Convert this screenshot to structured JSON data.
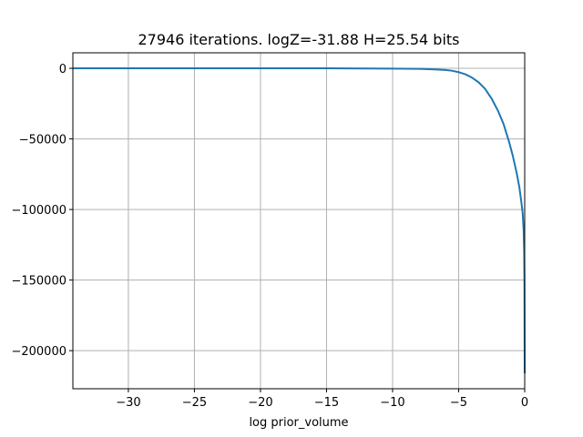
{
  "chart_data": {
    "type": "line",
    "title": "27946 iterations. logZ=-31.88 H=25.54 bits",
    "xlabel": "log prior_volume",
    "ylabel": "",
    "xlim": [
      -34.2,
      0
    ],
    "ylim": [
      -227000,
      11000
    ],
    "grid": true,
    "x_ticks": [
      -30,
      -25,
      -20,
      -15,
      -10,
      -5,
      0
    ],
    "x_tick_labels": [
      "−30",
      "−25",
      "−20",
      "−15",
      "−10",
      "−5",
      "0"
    ],
    "y_ticks": [
      0,
      -50000,
      -100000,
      -150000,
      -200000
    ],
    "y_tick_labels": [
      "0",
      "−50000",
      "−100000",
      "−150000",
      "−200000"
    ],
    "series": [
      {
        "color": "#1f77b4",
        "x": [
          -34.2,
          -30,
          -25,
          -20,
          -15,
          -10,
          -8,
          -7,
          -6,
          -5.5,
          -5,
          -4.5,
          -4,
          -3.5,
          -3,
          -2.5,
          -2,
          -1.6,
          -1.2,
          -0.9,
          -0.6,
          -0.4,
          -0.25,
          -0.15,
          -0.08,
          -0.04,
          -0.02,
          0
        ],
        "y": [
          0,
          0,
          0,
          0,
          0,
          -200,
          -400,
          -700,
          -1200,
          -1700,
          -2700,
          -4200,
          -6500,
          -9800,
          -14500,
          -21500,
          -30500,
          -39500,
          -51500,
          -62000,
          -74500,
          -84500,
          -95000,
          -103000,
          -115000,
          -130000,
          -150000,
          -216000
        ]
      }
    ]
  }
}
